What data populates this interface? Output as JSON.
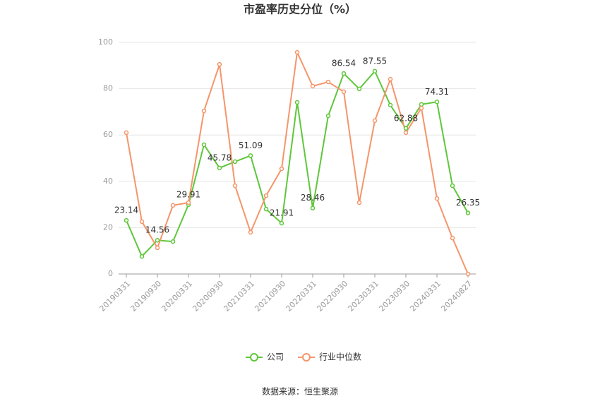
{
  "chart_data": {
    "type": "line",
    "title": "市盈率历史分位（%）",
    "source": "数据来源：恒生聚源",
    "categories": [
      "20190331",
      null,
      "20190930",
      null,
      "20200331",
      null,
      "20200930",
      null,
      "20210331",
      null,
      "20210930",
      null,
      "20220331",
      null,
      "20220930",
      null,
      "20230331",
      null,
      "20230930",
      null,
      "20240331",
      null,
      "20240827"
    ],
    "series": [
      {
        "name": "公司",
        "color": "#5ec73a",
        "values": [
          23.14,
          7.6,
          14.56,
          14.0,
          29.91,
          55.8,
          45.78,
          48.5,
          51.09,
          28.0,
          21.91,
          74.1,
          28.46,
          68.3,
          86.54,
          79.9,
          87.55,
          72.9,
          62.88,
          73.2,
          74.31,
          38.1,
          26.35
        ]
      },
      {
        "name": "行业中位数",
        "color": "#f5956a",
        "values": [
          61.0,
          22.6,
          11.3,
          29.6,
          30.8,
          70.4,
          90.5,
          38.1,
          18.0,
          33.8,
          45.4,
          95.7,
          81.1,
          82.9,
          78.7,
          30.8,
          66.2,
          84.1,
          61.0,
          71.6,
          32.6,
          15.5,
          0
        ]
      }
    ],
    "ylim": [
      0,
      100
    ],
    "yticks": [
      0,
      20,
      40,
      60,
      80,
      100
    ],
    "grid": true,
    "legend": "bottom"
  }
}
